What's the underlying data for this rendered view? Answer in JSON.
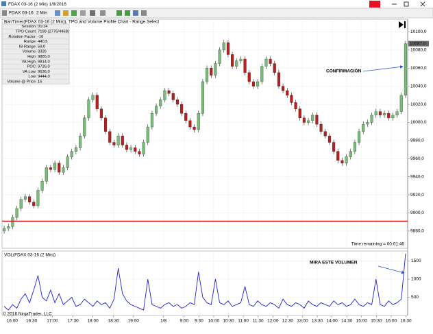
{
  "window": {
    "title": "FDAX 03-16 (2 Min)  1/8/2016",
    "instrument": "FDAX 03-16",
    "interval": "2 Min"
  },
  "info_table": {
    "rows": [
      [
        "Session",
        "01/14"
      ],
      [
        "TPO Count",
        "7199 (2776/4468)"
      ],
      [
        "Rotation Factor",
        "-16"
      ],
      [
        "Range",
        "440,5"
      ],
      [
        "IB Range",
        "59,0"
      ],
      [
        "Volume",
        "3326"
      ],
      [
        "High",
        "9885,0"
      ],
      [
        "VA High",
        "9814,0"
      ],
      [
        "POC",
        "9726,0"
      ],
      [
        "VA Low",
        "9636,0"
      ],
      [
        "Low",
        "9444,0"
      ],
      [
        "Volume @ Price",
        "16"
      ]
    ]
  },
  "chart_data": [
    {
      "type": "candlestick",
      "title": "Bar/Timer(FDAX 03-16 (2 Min)), TPO and Volume Profile Chart - Range Select",
      "annotation": "CONFIRMACIÓN",
      "time_remaining": "Time remaining = 00:01:46",
      "up_color": "#7dbb7d",
      "down_color": "#b22222",
      "xlim": [
        -0.5,
        95.5
      ],
      "ylim": [
        9861,
        10114
      ],
      "yticks": [
        {
          "value": 9880,
          "label": "9880,0"
        },
        {
          "value": 9900,
          "label": "9900,0"
        },
        {
          "value": 9920,
          "label": "9920,0"
        },
        {
          "value": 9940,
          "label": "9940,0"
        },
        {
          "value": 9960,
          "label": "9960,0"
        },
        {
          "value": 9980,
          "label": "9980,0"
        },
        {
          "value": 10000,
          "label": "10000,0"
        },
        {
          "value": 10020,
          "label": "10020,0"
        },
        {
          "value": 10040,
          "label": "10040,0"
        },
        {
          "value": 10060,
          "label": "10060,0"
        },
        {
          "value": 10080,
          "label": "10080,0"
        },
        {
          "value": 10100,
          "label": "10100,0"
        }
      ],
      "current_price": {
        "value": 10087,
        "label": "10087,0"
      },
      "hline": {
        "value": 9891,
        "color": "#cc0000"
      },
      "open": [
        9880,
        9883,
        9885,
        9895,
        9905,
        9915,
        9918,
        9912,
        9908,
        9925,
        9935,
        9950,
        9948,
        9955,
        9945,
        9950,
        9962,
        9968,
        9972,
        9985,
        10005,
        10025,
        10030,
        10015,
        10005,
        9990,
        9978,
        9975,
        9985,
        9975,
        9970,
        9972,
        9968,
        9965,
        9978,
        9995,
        10010,
        10018,
        10025,
        10035,
        10032,
        10025,
        10020,
        10010,
        10002,
        9995,
        9992,
        10010,
        10045,
        10060,
        10052,
        10065,
        10080,
        10088,
        10075,
        10062,
        10068,
        10070,
        10055,
        10045,
        10040,
        10045,
        10062,
        10070,
        10065,
        10055,
        10040,
        10035,
        10030,
        10022,
        10015,
        10005,
        10000,
        10002,
        10008,
        9998,
        9990,
        9985,
        9978,
        9968,
        9958,
        9955,
        9962,
        9968,
        9978,
        9990,
        9998,
        10000,
        10008,
        10012,
        10008,
        10010,
        10005,
        10008,
        10012,
        10030
      ],
      "high": [
        9886,
        9888,
        9898,
        9908,
        9918,
        9921,
        9921,
        9915,
        9928,
        9938,
        9953,
        9953,
        9958,
        9958,
        9953,
        9965,
        9971,
        9975,
        9988,
        10008,
        10028,
        10033,
        10033,
        10018,
        10008,
        9993,
        9981,
        9988,
        9988,
        9978,
        9975,
        9975,
        9971,
        9981,
        9998,
        10013,
        10021,
        10028,
        10038,
        10038,
        10035,
        10028,
        10023,
        10013,
        10005,
        9998,
        10013,
        10048,
        10063,
        10063,
        10068,
        10083,
        10091,
        10091,
        10078,
        10071,
        10073,
        10073,
        10058,
        10048,
        10048,
        10065,
        10073,
        10073,
        10068,
        10058,
        10043,
        10038,
        10033,
        10025,
        10018,
        10008,
        10005,
        10011,
        10011,
        10001,
        9993,
        9988,
        9981,
        9971,
        9961,
        9965,
        9971,
        9981,
        9993,
        10001,
        10003,
        10011,
        10015,
        10015,
        10013,
        10013,
        10011,
        10015,
        10033,
        10090
      ],
      "low": [
        9877,
        9880,
        9882,
        9892,
        9902,
        9912,
        9909,
        9905,
        9905,
        9922,
        9932,
        9945,
        9945,
        9942,
        9942,
        9947,
        9959,
        9965,
        9969,
        9982,
        10002,
        10022,
        10012,
        10002,
        9987,
        9975,
        9972,
        9972,
        9972,
        9967,
        9967,
        9965,
        9962,
        9962,
        9975,
        9992,
        10007,
        10015,
        10022,
        10029,
        10022,
        10017,
        10007,
        9999,
        9992,
        9989,
        9989,
        10007,
        10042,
        10049,
        10049,
        10062,
        10077,
        10072,
        10059,
        10059,
        10065,
        10052,
        10042,
        10037,
        10037,
        10042,
        10059,
        10062,
        10052,
        10037,
        10032,
        10027,
        10019,
        10012,
        10002,
        9997,
        9997,
        9999,
        9995,
        9987,
        9982,
        9975,
        9965,
        9955,
        9952,
        9952,
        9959,
        9965,
        9975,
        9987,
        9995,
        9997,
        10005,
        10005,
        10005,
        10002,
        10002,
        10005,
        10009,
        10027
      ],
      "close": [
        9883,
        9885,
        9895,
        9905,
        9915,
        9918,
        9912,
        9908,
        9925,
        9935,
        9950,
        9948,
        9955,
        9945,
        9950,
        9962,
        9968,
        9972,
        9985,
        10005,
        10025,
        10030,
        10015,
        10005,
        9990,
        9978,
        9975,
        9985,
        9975,
        9970,
        9972,
        9968,
        9965,
        9978,
        9995,
        10010,
        10018,
        10025,
        10035,
        10032,
        10025,
        10020,
        10010,
        10002,
        9995,
        9992,
        10010,
        10045,
        10060,
        10052,
        10065,
        10080,
        10088,
        10075,
        10062,
        10068,
        10070,
        10055,
        10045,
        10040,
        10045,
        10062,
        10070,
        10065,
        10055,
        10040,
        10035,
        10030,
        10022,
        10015,
        10005,
        10000,
        10002,
        10008,
        9998,
        9990,
        9985,
        9978,
        9968,
        9958,
        9955,
        9962,
        9968,
        9978,
        9990,
        9998,
        10000,
        10008,
        10012,
        10008,
        10010,
        10005,
        10008,
        10012,
        10030,
        10087
      ]
    },
    {
      "type": "line",
      "title": "VOL(FDAX 03-16 (2 Min))",
      "annotation": "MIRA ESTE VOLUMEN",
      "copyright": "© 2016 NinjaTrader, LLC",
      "color": "#1f1fd0",
      "xlim": [
        -0.5,
        95.5
      ],
      "xticks": [
        {
          "value": 1.9,
          "label": "16:00"
        },
        {
          "value": 6.5,
          "label": "16:30"
        },
        {
          "value": 11.4,
          "label": "17:00"
        },
        {
          "value": 16.3,
          "label": "17:30"
        },
        {
          "value": 21,
          "label": "18:00"
        },
        {
          "value": 25.9,
          "label": "18:30"
        },
        {
          "value": 30.6,
          "label": "19:00"
        },
        {
          "value": 37.7,
          "label": "1/8"
        },
        {
          "value": 42.6,
          "label": "9:00"
        },
        {
          "value": 46.1,
          "label": "9:30"
        },
        {
          "value": 49.6,
          "label": "10:00"
        },
        {
          "value": 53.1,
          "label": "10:30"
        },
        {
          "value": 56.6,
          "label": "11:00"
        },
        {
          "value": 60.1,
          "label": "11:30"
        },
        {
          "value": 63.6,
          "label": "12:00"
        },
        {
          "value": 67.1,
          "label": "12:30"
        },
        {
          "value": 70.6,
          "label": "13:00"
        },
        {
          "value": 74.1,
          "label": "13:30"
        },
        {
          "value": 77.6,
          "label": "14:00"
        },
        {
          "value": 81.1,
          "label": "14:30"
        },
        {
          "value": 84.6,
          "label": "15:00"
        },
        {
          "value": 88.1,
          "label": "15:30"
        },
        {
          "value": 91.6,
          "label": "16:00"
        },
        {
          "value": 95.1,
          "label": "16:30"
        }
      ],
      "ylim": [
        0,
        1774
      ],
      "yticks": [
        500,
        1000,
        1500
      ],
      "values": [
        250,
        150,
        300,
        200,
        450,
        600,
        350,
        700,
        1100,
        500,
        400,
        700,
        350,
        600,
        300,
        400,
        500,
        250,
        300,
        450,
        350,
        250,
        400,
        300,
        350,
        200,
        450,
        1300,
        600,
        400,
        300,
        250,
        200,
        150,
        1000,
        300,
        250,
        200,
        300,
        350,
        250,
        300,
        200,
        250,
        350,
        300,
        1200,
        500,
        350,
        300,
        1000,
        350,
        300,
        400,
        250,
        300,
        350,
        800,
        300,
        250,
        400,
        300,
        250,
        350,
        300,
        200,
        450,
        300,
        250,
        350,
        300,
        200,
        400,
        300,
        250,
        350,
        300,
        250,
        400,
        300,
        350,
        250,
        300,
        450,
        300,
        250,
        350,
        300,
        1000,
        300,
        250,
        400,
        300,
        350,
        450,
        1700
      ]
    }
  ]
}
